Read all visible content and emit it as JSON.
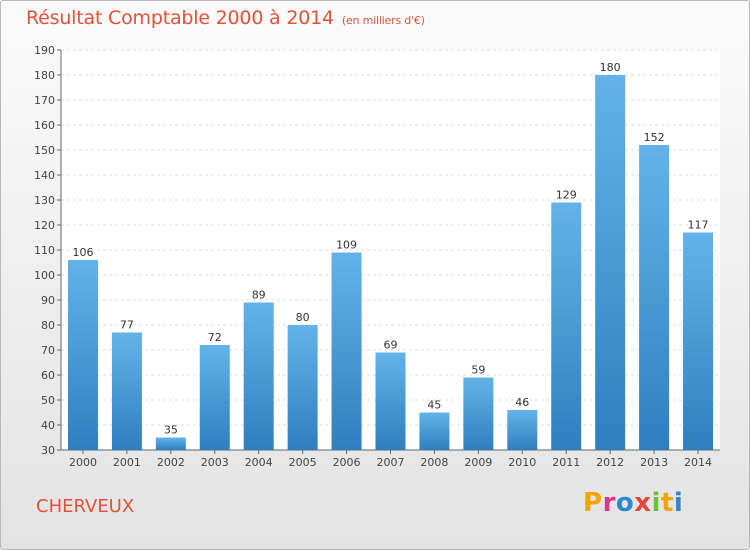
{
  "title": "Résultat Comptable 2000 à 2014",
  "unit": "(en milliers d'€)",
  "place": "CHERVEUX",
  "logo": {
    "letters": [
      "P",
      "r",
      "o",
      "x",
      "i",
      "t",
      "i"
    ],
    "colors": [
      "#f0a500",
      "#d9388a",
      "#2b87d1",
      "#e8463a",
      "#6fbf3a",
      "#f0a500",
      "#2b87d1"
    ]
  },
  "colors": {
    "bar_light": "#63b3ea",
    "bar_dark": "#2f7fbf",
    "accent": "#e0523a"
  },
  "chart_data": {
    "type": "bar",
    "title": "Résultat Comptable 2000 à 2014",
    "ylabel": "(en milliers d'€)",
    "categories": [
      "2000",
      "2001",
      "2002",
      "2003",
      "2004",
      "2005",
      "2006",
      "2007",
      "2008",
      "2009",
      "2010",
      "2011",
      "2012",
      "2013",
      "2014"
    ],
    "values": [
      106,
      77,
      35,
      72,
      89,
      80,
      109,
      69,
      45,
      59,
      46,
      129,
      180,
      152,
      117
    ],
    "ylim": [
      30,
      190
    ],
    "yticks": [
      30,
      40,
      50,
      60,
      70,
      80,
      90,
      100,
      110,
      120,
      130,
      140,
      150,
      160,
      170,
      180,
      190
    ],
    "grid": true
  }
}
